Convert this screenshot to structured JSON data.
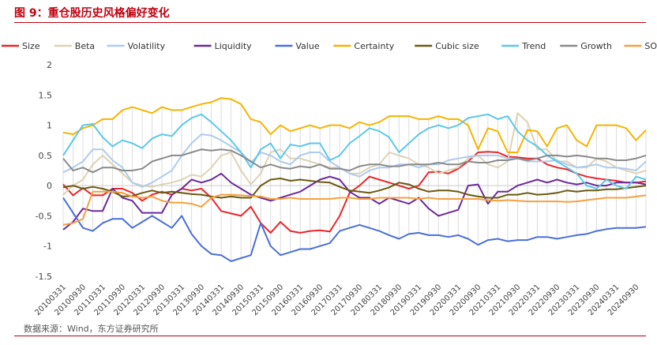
{
  "figure": {
    "title": "图 9：重仓股历史风格偏好变化",
    "source": "数据来源：Wind，东方证券研究所"
  },
  "chart_data": {
    "type": "line",
    "title": "",
    "xlabel": "",
    "ylabel": "",
    "ylim": [
      -1.5,
      2
    ],
    "yticks": [
      -1.5,
      -1,
      -0.5,
      0,
      0.5,
      1,
      1.5,
      2
    ],
    "legend_position": "top",
    "grid": false,
    "x_tick_labels": [
      "20100331",
      "20100930",
      "20110331",
      "20110930",
      "20120331",
      "20120930",
      "20130331",
      "20130930",
      "20140331",
      "20140930",
      "20150331",
      "20150930",
      "20160331",
      "20160930",
      "20170331",
      "20170930",
      "20180331",
      "20180930",
      "20190331",
      "20190930",
      "20200331",
      "20200930",
      "20210331",
      "20210930",
      "20220331",
      "20220930",
      "20230331",
      "20230930",
      "20240331",
      "20240930"
    ],
    "x": [
      "20100331",
      "20100630",
      "20100930",
      "20101231",
      "20110331",
      "20110630",
      "20110930",
      "20111231",
      "20120331",
      "20120630",
      "20120930",
      "20121231",
      "20130331",
      "20130630",
      "20130930",
      "20131231",
      "20140331",
      "20140630",
      "20140930",
      "20141231",
      "20150331",
      "20150630",
      "20150930",
      "20151231",
      "20160331",
      "20160630",
      "20160930",
      "20161231",
      "20170331",
      "20170630",
      "20170930",
      "20171231",
      "20180331",
      "20180630",
      "20180930",
      "20181231",
      "20190331",
      "20190630",
      "20190930",
      "20191231",
      "20200331",
      "20200630",
      "20200930",
      "20201231",
      "20210331",
      "20210630",
      "20210930",
      "20211231",
      "20220331",
      "20220630",
      "20220930",
      "20221231",
      "20230331",
      "20230630",
      "20230930",
      "20231231",
      "20240331",
      "20240630",
      "20240930",
      "20241231"
    ],
    "series": [
      {
        "name": "Size",
        "color": "#e8262b",
        "values": [
          0.02,
          -0.16,
          -0.04,
          -0.16,
          -0.16,
          -0.05,
          -0.05,
          -0.12,
          -0.25,
          -0.15,
          -0.1,
          -0.15,
          -0.05,
          -0.08,
          -0.05,
          -0.2,
          -0.42,
          -0.46,
          -0.5,
          -0.35,
          -0.62,
          -0.78,
          -0.6,
          -0.75,
          -0.78,
          -0.75,
          -0.74,
          -0.76,
          -0.5,
          -0.12,
          0.0,
          0.15,
          0.1,
          0.05,
          0.0,
          -0.05,
          0.0,
          0.22,
          0.23,
          0.2,
          0.28,
          0.4,
          0.55,
          0.56,
          0.55,
          0.48,
          0.47,
          0.45,
          0.45,
          0.35,
          0.3,
          0.27,
          0.2,
          0.15,
          0.12,
          0.1,
          0.08,
          0.05,
          0.05,
          0.07
        ]
      },
      {
        "name": "Beta",
        "color": "#ddd2b4",
        "values": [
          -0.15,
          0.0,
          0.1,
          0.35,
          0.5,
          0.35,
          0.2,
          0.05,
          0.0,
          -0.02,
          0.02,
          0.05,
          0.1,
          0.18,
          0.15,
          0.3,
          0.5,
          0.55,
          0.25,
          0.02,
          0.2,
          0.55,
          0.6,
          0.45,
          0.45,
          0.4,
          0.35,
          0.3,
          0.3,
          0.2,
          0.2,
          0.3,
          0.35,
          0.55,
          0.5,
          0.45,
          0.35,
          0.3,
          0.2,
          0.25,
          0.3,
          0.45,
          0.5,
          0.35,
          0.3,
          0.4,
          1.2,
          1.05,
          0.6,
          0.6,
          0.4,
          0.4,
          0.3,
          0.3,
          0.45,
          0.4,
          0.3,
          0.25,
          0.2,
          0.25
        ]
      },
      {
        "name": "Volatility",
        "color": "#aecbee",
        "values": [
          0.22,
          0.3,
          0.4,
          0.6,
          0.6,
          0.42,
          0.3,
          0.05,
          -0.02,
          0.05,
          0.15,
          0.25,
          0.5,
          0.7,
          0.85,
          0.83,
          0.75,
          0.65,
          0.55,
          0.38,
          0.55,
          0.5,
          0.4,
          0.35,
          0.5,
          0.55,
          0.55,
          0.4,
          0.3,
          0.2,
          0.15,
          0.25,
          0.3,
          0.3,
          0.35,
          0.35,
          0.3,
          0.35,
          0.35,
          0.42,
          0.45,
          0.48,
          0.5,
          0.5,
          0.5,
          0.45,
          0.45,
          0.4,
          0.4,
          0.4,
          0.42,
          0.35,
          0.3,
          0.32,
          0.35,
          0.3,
          0.3,
          0.28,
          0.25,
          0.4
        ]
      },
      {
        "name": "Liquidity",
        "color": "#6a2a9a",
        "values": [
          -0.73,
          -0.6,
          -0.38,
          -0.42,
          -0.42,
          -0.05,
          -0.2,
          -0.25,
          -0.45,
          -0.45,
          -0.45,
          -0.15,
          -0.05,
          0.1,
          0.05,
          0.1,
          0.2,
          0.05,
          -0.05,
          -0.15,
          -0.2,
          -0.25,
          -0.2,
          -0.15,
          -0.1,
          0.0,
          0.1,
          0.15,
          0.1,
          -0.1,
          -0.2,
          -0.2,
          -0.3,
          -0.2,
          -0.25,
          -0.3,
          -0.2,
          -0.38,
          -0.5,
          -0.45,
          -0.4,
          0.0,
          0.02,
          -0.3,
          -0.1,
          -0.1,
          0.0,
          0.05,
          0.1,
          0.05,
          0.1,
          0.05,
          0.02,
          0.05,
          0.0,
          0.0,
          0.05,
          0.05,
          0.05,
          0.02
        ]
      },
      {
        "name": "Value",
        "color": "#4a6fd8",
        "values": [
          -0.2,
          -0.45,
          -0.7,
          -0.75,
          -0.62,
          -0.55,
          -0.55,
          -0.7,
          -0.6,
          -0.5,
          -0.6,
          -0.7,
          -0.5,
          -0.8,
          -1.0,
          -1.13,
          -1.15,
          -1.25,
          -1.2,
          -1.15,
          -0.62,
          -1.0,
          -1.15,
          -1.1,
          -1.05,
          -1.05,
          -1.0,
          -0.95,
          -0.75,
          -0.7,
          -0.65,
          -0.7,
          -0.75,
          -0.82,
          -0.88,
          -0.8,
          -0.78,
          -0.82,
          -0.82,
          -0.85,
          -0.82,
          -0.88,
          -0.98,
          -0.9,
          -0.88,
          -0.92,
          -0.9,
          -0.9,
          -0.85,
          -0.85,
          -0.88,
          -0.85,
          -0.82,
          -0.8,
          -0.75,
          -0.72,
          -0.7,
          -0.7,
          -0.7,
          -0.68
        ]
      },
      {
        "name": "Certainty",
        "color": "#f5b400",
        "values": [
          0.88,
          0.85,
          0.95,
          1.0,
          1.1,
          1.1,
          1.25,
          1.3,
          1.25,
          1.2,
          1.3,
          1.25,
          1.25,
          1.3,
          1.35,
          1.38,
          1.45,
          1.43,
          1.35,
          1.1,
          1.05,
          0.85,
          1.0,
          0.9,
          0.95,
          1.0,
          0.95,
          1.0,
          1.0,
          0.95,
          1.05,
          1.0,
          1.05,
          1.15,
          1.15,
          1.15,
          1.1,
          1.1,
          1.15,
          1.1,
          1.1,
          1.0,
          0.6,
          0.95,
          0.9,
          0.55,
          0.55,
          0.92,
          0.9,
          0.65,
          0.95,
          1.0,
          0.75,
          0.65,
          1.0,
          1.0,
          1.0,
          0.95,
          0.75,
          0.92
        ]
      },
      {
        "name": "Cubic size",
        "color": "#6b5a10",
        "values": [
          -0.03,
          0.0,
          -0.05,
          -0.02,
          -0.05,
          -0.1,
          -0.18,
          -0.17,
          -0.12,
          -0.08,
          -0.12,
          -0.1,
          -0.12,
          -0.14,
          -0.15,
          -0.18,
          -0.2,
          -0.18,
          -0.2,
          -0.2,
          0.0,
          0.1,
          0.12,
          0.08,
          0.1,
          0.08,
          0.06,
          0.05,
          -0.02,
          -0.08,
          -0.1,
          -0.12,
          -0.08,
          -0.03,
          0.05,
          0.02,
          -0.05,
          -0.1,
          -0.08,
          -0.08,
          -0.1,
          -0.15,
          -0.18,
          -0.2,
          -0.2,
          -0.15,
          -0.15,
          -0.12,
          -0.15,
          -0.14,
          -0.12,
          -0.08,
          -0.1,
          -0.08,
          -0.08,
          -0.06,
          -0.06,
          -0.04,
          -0.02,
          0.0
        ]
      },
      {
        "name": "Trend",
        "color": "#5bc8e8",
        "values": [
          0.5,
          0.75,
          1.0,
          1.02,
          0.8,
          0.65,
          0.75,
          0.7,
          0.62,
          0.78,
          0.85,
          0.82,
          1.0,
          1.12,
          1.18,
          1.05,
          0.9,
          0.75,
          0.55,
          0.3,
          0.6,
          0.7,
          0.45,
          0.68,
          0.65,
          0.7,
          0.7,
          0.42,
          0.5,
          0.7,
          0.82,
          0.95,
          0.9,
          0.8,
          0.55,
          0.7,
          0.85,
          0.95,
          1.0,
          0.95,
          1.0,
          1.12,
          1.15,
          1.18,
          1.1,
          1.15,
          0.9,
          0.75,
          0.65,
          0.5,
          0.4,
          0.3,
          0.2,
          0.0,
          -0.05,
          0.1,
          0.0,
          -0.05,
          0.15,
          0.1
        ]
      },
      {
        "name": "Growth",
        "color": "#8a8a8a",
        "values": [
          0.45,
          0.25,
          0.3,
          0.22,
          0.3,
          0.3,
          0.25,
          0.25,
          0.28,
          0.4,
          0.45,
          0.5,
          0.5,
          0.55,
          0.6,
          0.58,
          0.6,
          0.58,
          0.5,
          0.4,
          0.3,
          0.35,
          0.3,
          0.28,
          0.32,
          0.3,
          0.35,
          0.28,
          0.28,
          0.25,
          0.32,
          0.35,
          0.35,
          0.32,
          0.32,
          0.35,
          0.35,
          0.35,
          0.38,
          0.35,
          0.35,
          0.4,
          0.38,
          0.38,
          0.42,
          0.42,
          0.45,
          0.42,
          0.45,
          0.5,
          0.5,
          0.48,
          0.5,
          0.48,
          0.45,
          0.45,
          0.42,
          0.42,
          0.45,
          0.5
        ]
      },
      {
        "name": "SOE",
        "color": "#f5a040",
        "values": [
          -0.65,
          -0.62,
          -0.55,
          -0.1,
          -0.1,
          -0.1,
          -0.12,
          -0.18,
          -0.2,
          -0.18,
          -0.25,
          -0.28,
          -0.28,
          -0.3,
          -0.35,
          -0.2,
          -0.15,
          -0.15,
          -0.16,
          -0.17,
          -0.18,
          -0.22,
          -0.22,
          -0.2,
          -0.22,
          -0.22,
          -0.22,
          -0.22,
          -0.2,
          -0.2,
          -0.22,
          -0.22,
          -0.2,
          -0.2,
          -0.2,
          -0.2,
          -0.22,
          -0.2,
          -0.22,
          -0.22,
          -0.22,
          -0.22,
          -0.22,
          -0.24,
          -0.25,
          -0.24,
          -0.25,
          -0.26,
          -0.26,
          -0.26,
          -0.26,
          -0.27,
          -0.26,
          -0.24,
          -0.22,
          -0.2,
          -0.2,
          -0.2,
          -0.18,
          -0.16
        ]
      }
    ]
  }
}
